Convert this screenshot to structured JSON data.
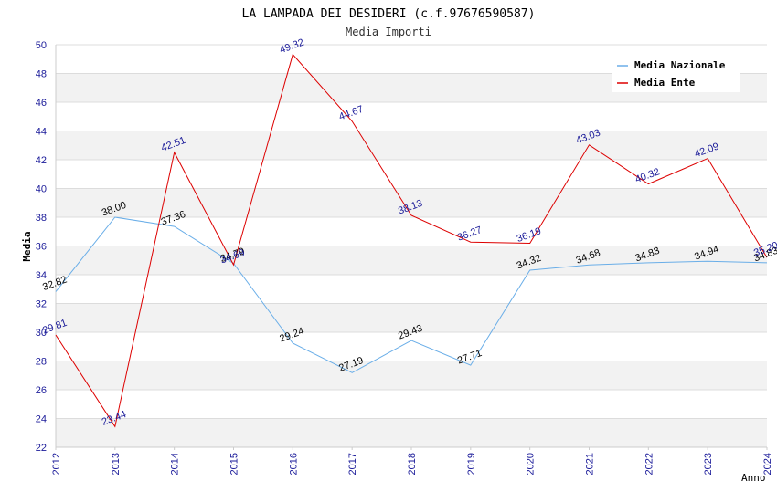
{
  "chart_data": {
    "type": "line",
    "title": "LA LAMPADA DEI DESIDERI (c.f.97676590587)",
    "subtitle": "Media Importi",
    "xlabel": "Anno",
    "ylabel": "Media",
    "ylim": [
      22,
      50
    ],
    "yticks": [
      "22",
      "24",
      "26",
      "28",
      "30",
      "32",
      "34",
      "36",
      "38",
      "40",
      "42",
      "44",
      "46",
      "48",
      "50"
    ],
    "categories": [
      "2012",
      "2013",
      "2014",
      "2015",
      "2016",
      "2017",
      "2018",
      "2019",
      "2020",
      "2021",
      "2022",
      "2023",
      "2024"
    ],
    "legend_position": "top-right",
    "series": [
      {
        "name": "Media Nazionale",
        "color": "#6aaee8",
        "values": [
          32.82,
          38.0,
          37.36,
          34.79,
          29.24,
          27.19,
          29.43,
          27.71,
          34.32,
          34.68,
          34.83,
          34.94,
          34.83
        ],
        "labels": [
          "32.82",
          "38.00",
          "37.36",
          "34.79",
          "29.24",
          "27.19",
          "29.43",
          "27.71",
          "34.32",
          "34.68",
          "34.83",
          "34.94",
          "34.83"
        ]
      },
      {
        "name": "Media Ente",
        "color": "#dd0000",
        "values": [
          29.81,
          23.44,
          42.51,
          34.69,
          49.32,
          44.67,
          38.13,
          36.27,
          36.19,
          43.03,
          40.32,
          42.09,
          35.2
        ],
        "labels": [
          "29.81",
          "23.44",
          "42.51",
          "34.69",
          "49.32",
          "44.67",
          "38.13",
          "36.27",
          "36.19",
          "43.03",
          "40.32",
          "42.09",
          "35.20"
        ]
      }
    ]
  }
}
